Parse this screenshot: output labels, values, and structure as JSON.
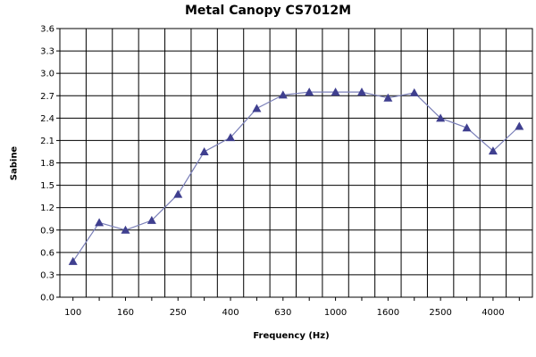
{
  "chart_data": {
    "type": "line",
    "title": "Metal Canopy CS7012M",
    "xlabel": "Frequency (Hz)",
    "ylabel": "Sabine",
    "x_tick_labels": [
      "100",
      "160",
      "250",
      "400",
      "630",
      "1000",
      "1600",
      "2500",
      "4000"
    ],
    "y_tick_labels": [
      "0.0",
      "0.3",
      "0.6",
      "0.9",
      "1.2",
      "1.5",
      "1.8",
      "2.1",
      "2.4",
      "2.7",
      "3.0",
      "3.3",
      "3.6"
    ],
    "ylim": [
      0,
      3.6
    ],
    "x_scale": "log (one-third octave bands)",
    "grid": true,
    "marker": "triangle",
    "line_color": "#7a7fb8",
    "marker_color": "#3f3f8f",
    "series": [
      {
        "x": [
          100,
          125,
          160,
          200,
          250,
          315,
          400,
          500,
          630,
          800,
          1000,
          1250,
          1600,
          2000,
          2500,
          3150,
          4000,
          5000
        ],
        "values": [
          0.48,
          1.0,
          0.9,
          1.03,
          1.38,
          1.95,
          2.14,
          2.53,
          2.71,
          2.75,
          2.75,
          2.75,
          2.67,
          2.74,
          2.4,
          2.27,
          1.96,
          2.29
        ]
      }
    ]
  }
}
